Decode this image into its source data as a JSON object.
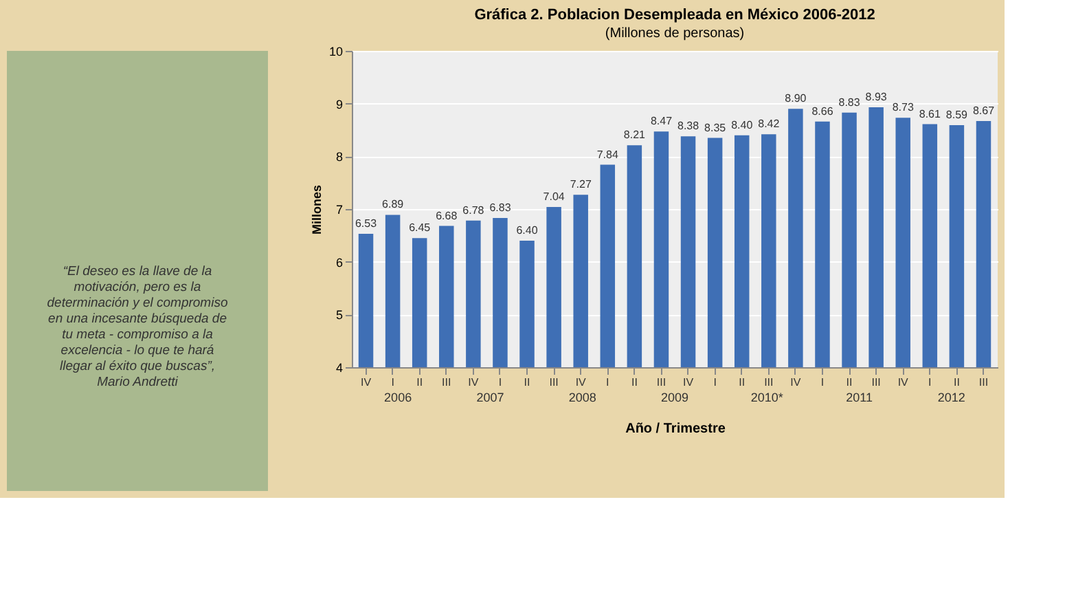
{
  "chart_data": {
    "type": "bar",
    "title": "Gráfica 2. Poblacion Desempleada en México 2006-2012",
    "subtitle": "(Millones de personas)",
    "xlabel": "Año / Trimestre",
    "ylabel": "Millones",
    "categories": [
      "IV",
      "I",
      "II",
      "III",
      "IV",
      "I",
      "II",
      "III",
      "IV",
      "I",
      "II",
      "III",
      "IV",
      "I",
      "II",
      "III",
      "IV",
      "I",
      "II",
      "III",
      "IV",
      "I",
      "II",
      "III"
    ],
    "values": [
      6.53,
      6.89,
      6.45,
      6.68,
      6.78,
      6.83,
      6.4,
      7.04,
      7.27,
      7.84,
      8.21,
      8.47,
      8.38,
      8.35,
      8.4,
      8.42,
      8.9,
      8.66,
      8.83,
      8.93,
      8.73,
      8.61,
      8.59,
      8.67
    ],
    "value_labels": [
      "6.53",
      "6.89",
      "6.45",
      "6.68",
      "6.78",
      "6.83",
      "6.40",
      "7.04",
      "7.27",
      "7.84",
      "8.21",
      "8.47",
      "8.38",
      "8.35",
      "8.40",
      "8.42",
      "8.90",
      "8.66",
      "8.83",
      "8.93",
      "8.73",
      "8.61",
      "8.59",
      "8.67"
    ],
    "color": "#3f6fb5",
    "ylim": [
      4,
      10
    ],
    "yticks": [
      4,
      5,
      6,
      7,
      8,
      9,
      10
    ],
    "grid": "y",
    "annotations": [
      "“El deseo es la llave de la motivación, pero es la determinación y el compromiso en una incesante búsqueda de tu meta - compromiso a la excelencia - lo que te hará llegar al éxito que buscas”, Mario Andretti",
      "2006",
      "2007",
      "2008",
      "2009",
      "2010*",
      "2011",
      "2012"
    ]
  }
}
